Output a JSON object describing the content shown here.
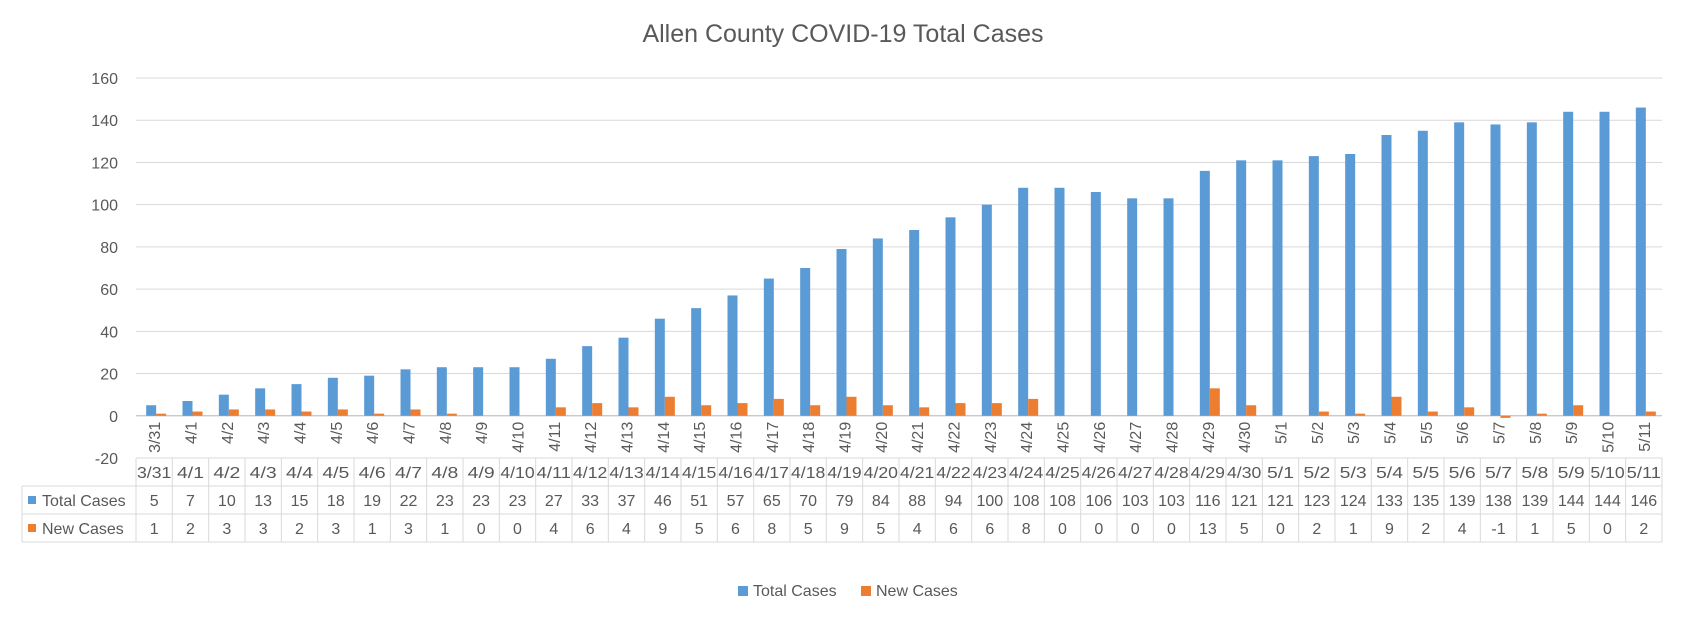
{
  "chart_data": {
    "type": "bar",
    "title": "Allen County COVID-19 Total Cases",
    "xlabel": "",
    "ylabel": "",
    "ylim": [
      -20,
      160
    ],
    "yticks": [
      -20,
      0,
      20,
      40,
      60,
      80,
      100,
      120,
      140,
      160
    ],
    "grid": true,
    "legend_position": "bottom",
    "has_data_table": true,
    "categories": [
      "3/31",
      "4/1",
      "4/2",
      "4/3",
      "4/4",
      "4/5",
      "4/6",
      "4/7",
      "4/8",
      "4/9",
      "4/10",
      "4/11",
      "4/12",
      "4/13",
      "4/14",
      "4/15",
      "4/16",
      "4/17",
      "4/18",
      "4/19",
      "4/20",
      "4/21",
      "4/22",
      "4/23",
      "4/24",
      "4/25",
      "4/26",
      "4/27",
      "4/28",
      "4/29",
      "4/30",
      "5/1",
      "5/2",
      "5/3",
      "5/4",
      "5/5",
      "5/6",
      "5/7",
      "5/8",
      "5/9",
      "5/10",
      "5/11"
    ],
    "series": [
      {
        "name": "Total Cases",
        "color": "#5b9bd5",
        "values": [
          5,
          7,
          10,
          13,
          15,
          18,
          19,
          22,
          23,
          23,
          23,
          27,
          33,
          37,
          46,
          51,
          57,
          65,
          70,
          79,
          84,
          88,
          94,
          100,
          108,
          108,
          106,
          103,
          103,
          116,
          121,
          121,
          123,
          124,
          133,
          135,
          139,
          138,
          139,
          144,
          144,
          146
        ]
      },
      {
        "name": "New Cases",
        "color": "#ed7d31",
        "values": [
          1,
          2,
          3,
          3,
          2,
          3,
          1,
          3,
          1,
          0,
          0,
          4,
          6,
          4,
          9,
          5,
          6,
          8,
          5,
          9,
          5,
          4,
          6,
          6,
          8,
          0,
          0,
          0,
          0,
          13,
          5,
          0,
          2,
          1,
          9,
          2,
          4,
          -1,
          1,
          5,
          0,
          2
        ]
      }
    ]
  }
}
